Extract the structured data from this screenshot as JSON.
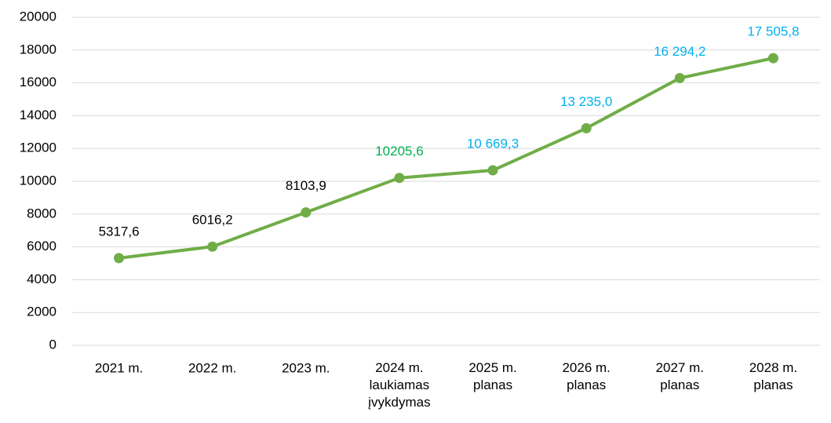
{
  "chart_data": {
    "type": "line",
    "categories": [
      "2021 m.",
      "2022 m.",
      "2023 m.",
      "2024 m.\nlaukiamas\nįvykdymas",
      "2025 m.\nplanas",
      "2026 m.\nplanas",
      "2027 m.\nplanas",
      "2028 m.\nplanas"
    ],
    "series": [
      {
        "color": "#70ad47",
        "values": [
          5317.6,
          6016.2,
          8103.9,
          10205.6,
          10669.3,
          13235.0,
          16294.2,
          17505.8
        ],
        "value_labels": [
          "5317,6",
          "6016,2",
          "8103,9",
          "10205,6",
          "10 669,3",
          "13 235,0",
          "16 294,2",
          "17 505,8"
        ],
        "value_label_colors": [
          "#000000",
          "#000000",
          "#000000",
          "#00b050",
          "#00b0f0",
          "#00b0f0",
          "#00b0f0",
          "#00b0f0"
        ]
      }
    ],
    "ylim": [
      0,
      20000
    ],
    "yticks": [
      0,
      2000,
      4000,
      6000,
      8000,
      10000,
      12000,
      14000,
      16000,
      18000,
      20000
    ],
    "grid": true
  }
}
